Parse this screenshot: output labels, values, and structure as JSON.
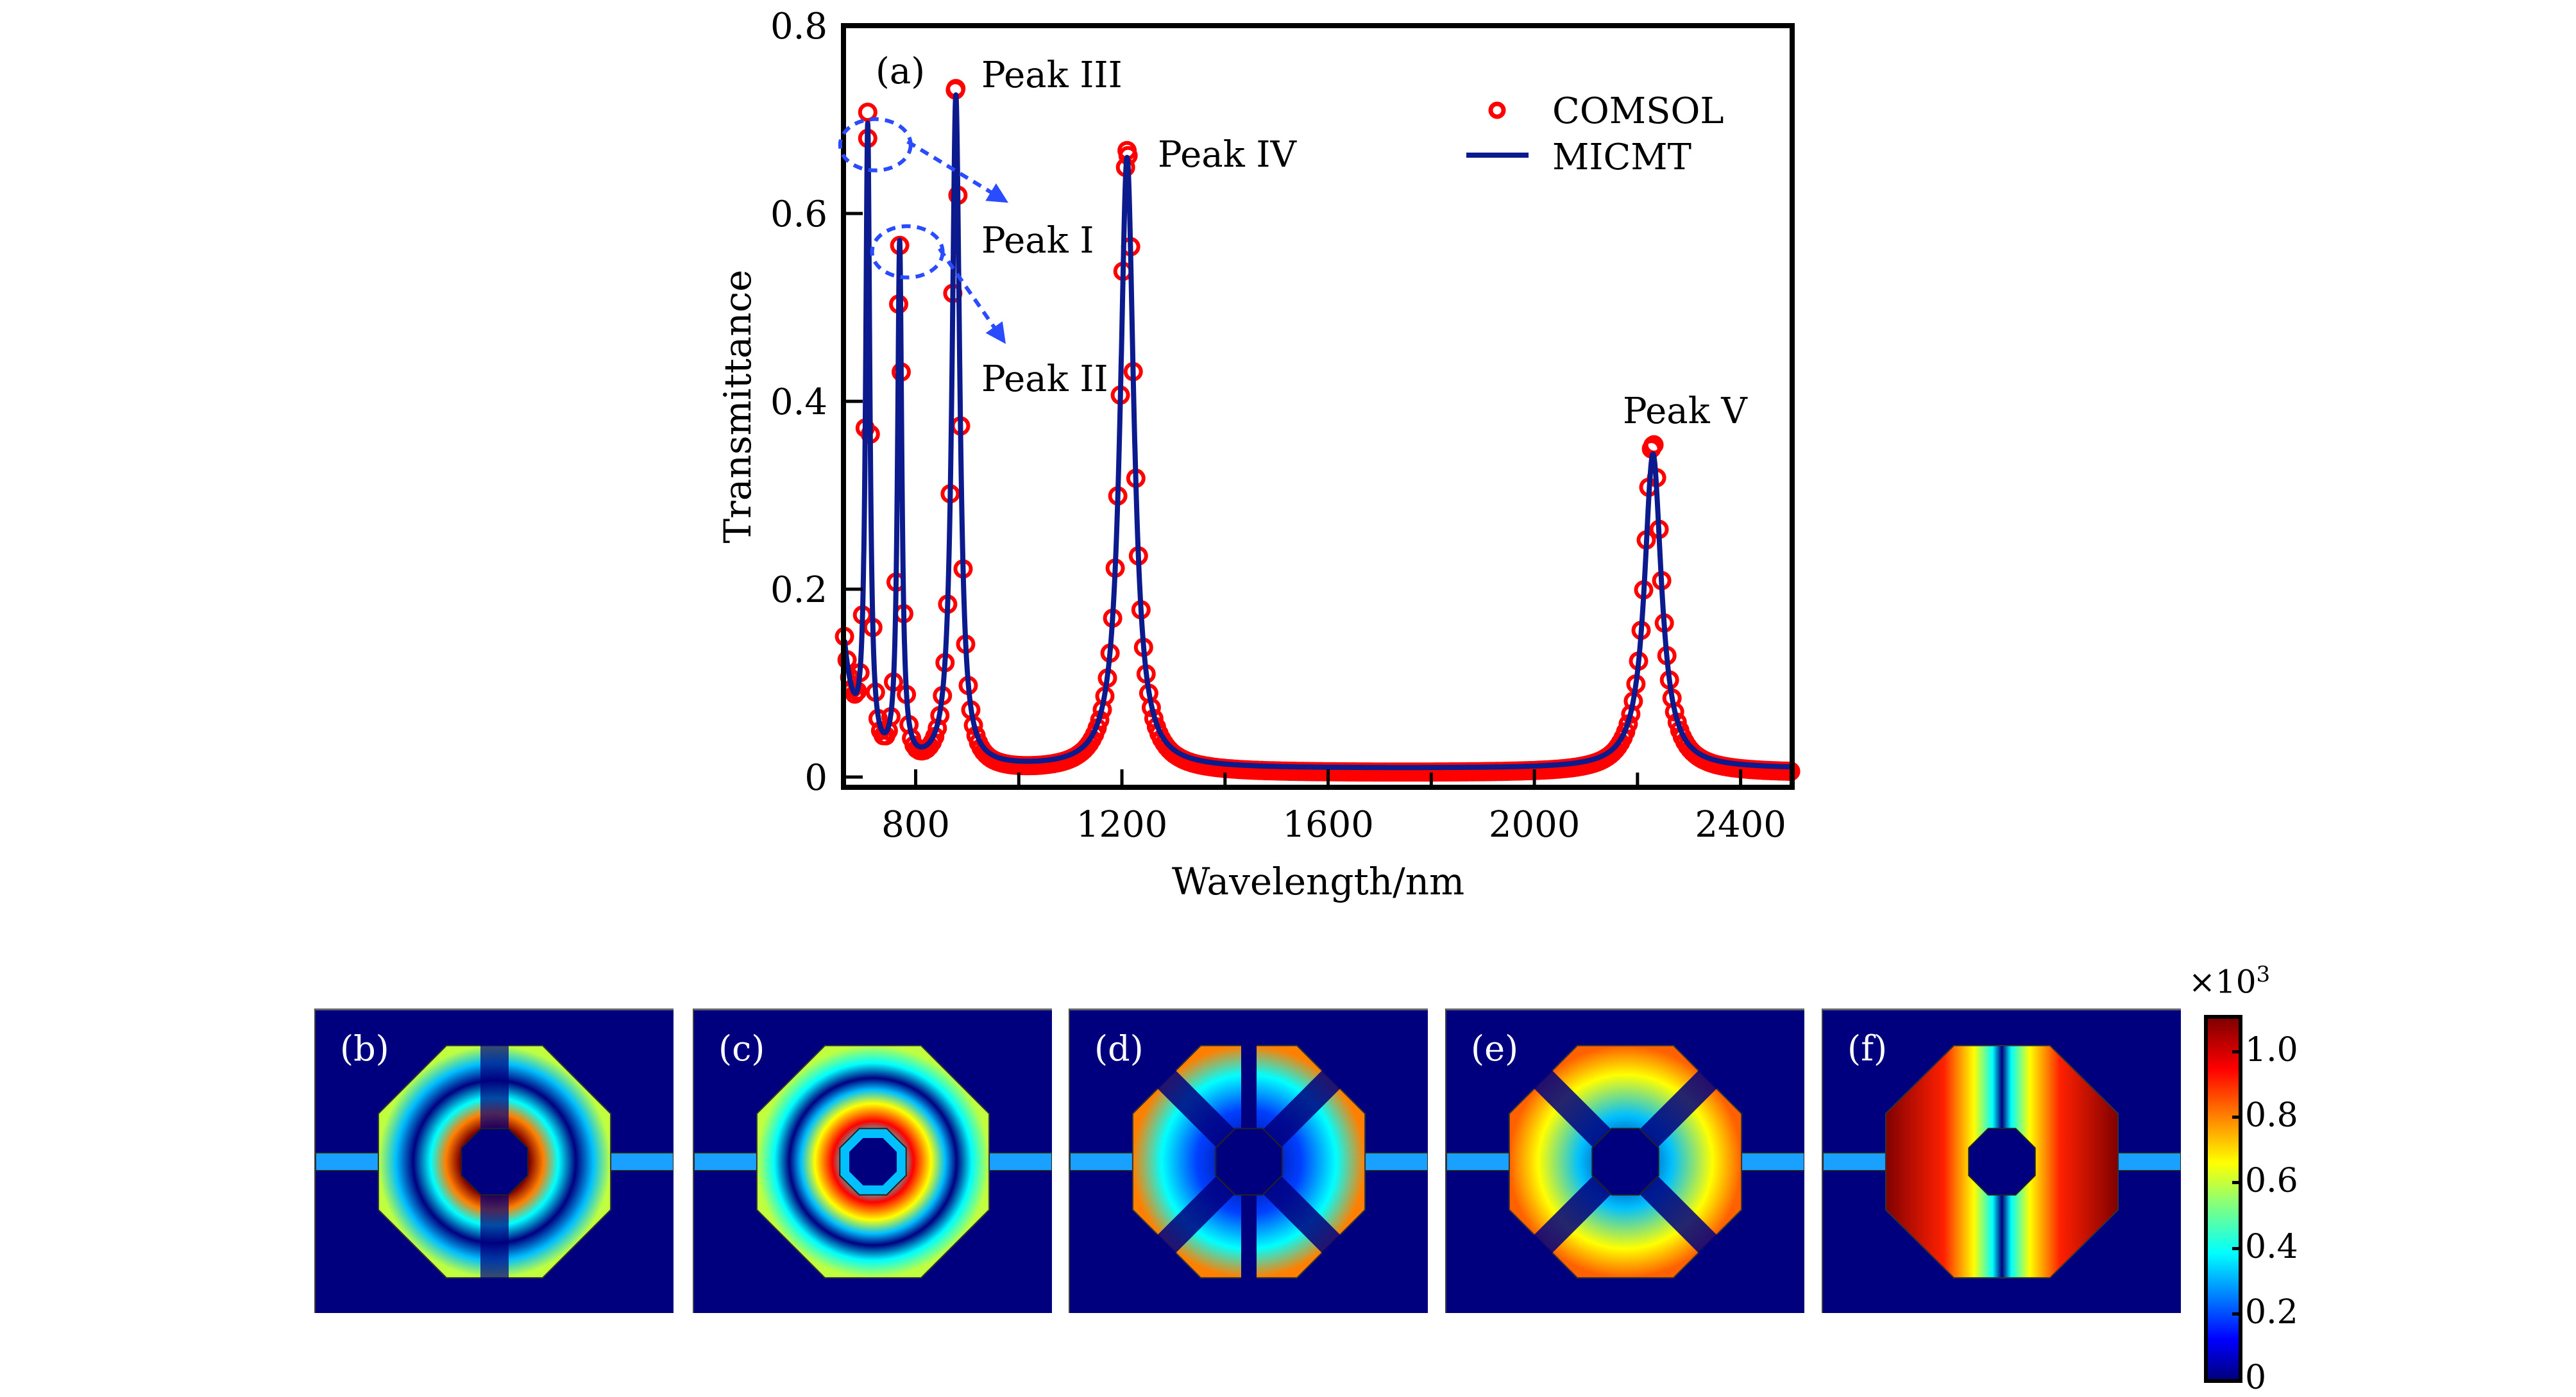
{
  "chart_data": {
    "type": "line",
    "panel_label": "(a)",
    "xlabel": "Wavelength/nm",
    "ylabel": "Transmittance",
    "xlim": [
      660,
      2500
    ],
    "ylim": [
      0,
      0.8
    ],
    "xticks": [
      800,
      1200,
      1600,
      2000,
      2400
    ],
    "xticks_minor": [
      1000,
      1400,
      1800,
      2200
    ],
    "yticks": [
      0,
      0.2,
      0.4,
      0.6,
      0.8
    ],
    "ytick_labels": [
      "0",
      "0.2",
      "0.4",
      "0.6",
      "0.8"
    ],
    "grid": false,
    "legend": {
      "position": "top-right",
      "entries": [
        {
          "name": "COMSOL",
          "marker": "open-circle",
          "color": "#ff0000"
        },
        {
          "name": "MICMT",
          "marker": "line",
          "color": "#0b1a8c"
        }
      ]
    },
    "peaks": [
      {
        "name": "Peak I",
        "wavelength": 707,
        "comsol": 0.68,
        "micmt": 0.675,
        "width": 5
      },
      {
        "name": "Peak II",
        "wavelength": 769,
        "comsol": 0.566,
        "micmt": 0.56,
        "width": 5
      },
      {
        "name": "Peak III",
        "wavelength": 878,
        "comsol": 0.733,
        "micmt": 0.725,
        "width": 9
      },
      {
        "name": "Peak IV",
        "wavelength": 1210,
        "comsol": 0.667,
        "micmt": 0.66,
        "width": 16
      },
      {
        "name": "Peak V",
        "wavelength": 2230,
        "comsol": 0.353,
        "micmt": 0.34,
        "width": 20
      }
    ],
    "series": [
      {
        "name": "COMSOL",
        "sample_step_nm": 5,
        "start_value": 0.21,
        "end_value": 0.0
      },
      {
        "name": "MICMT",
        "sample_step_nm": 1,
        "start_value": 0.2,
        "end_value": 0.005
      }
    ],
    "annotations": [
      {
        "text": "Peak I",
        "target": "Peak I",
        "style": "dashed-ellipse-arrow"
      },
      {
        "text": "Peak II",
        "target": "Peak II",
        "style": "dashed-ellipse-arrow"
      },
      {
        "text": "Peak III",
        "target": "Peak III"
      },
      {
        "text": "Peak IV",
        "target": "Peak IV"
      },
      {
        "text": "Peak V",
        "target": "Peak V"
      }
    ]
  },
  "field_maps": {
    "panels": [
      {
        "label": "(b)",
        "mode": "dipole-ring"
      },
      {
        "label": "(c)",
        "mode": "ring"
      },
      {
        "label": "(d)",
        "mode": "corners"
      },
      {
        "label": "(e)",
        "mode": "cross"
      },
      {
        "label": "(f)",
        "mode": "lobes"
      }
    ],
    "colorbar": {
      "multiplier": "×10",
      "exponent": "3",
      "range": [
        0,
        1.1
      ],
      "ticks": [
        0,
        0.2,
        0.4,
        0.6,
        0.8,
        1.0
      ],
      "tick_labels": [
        "0",
        "0.2",
        "0.4",
        "0.6",
        "0.8",
        "1.0"
      ],
      "colormap": "jet"
    }
  }
}
